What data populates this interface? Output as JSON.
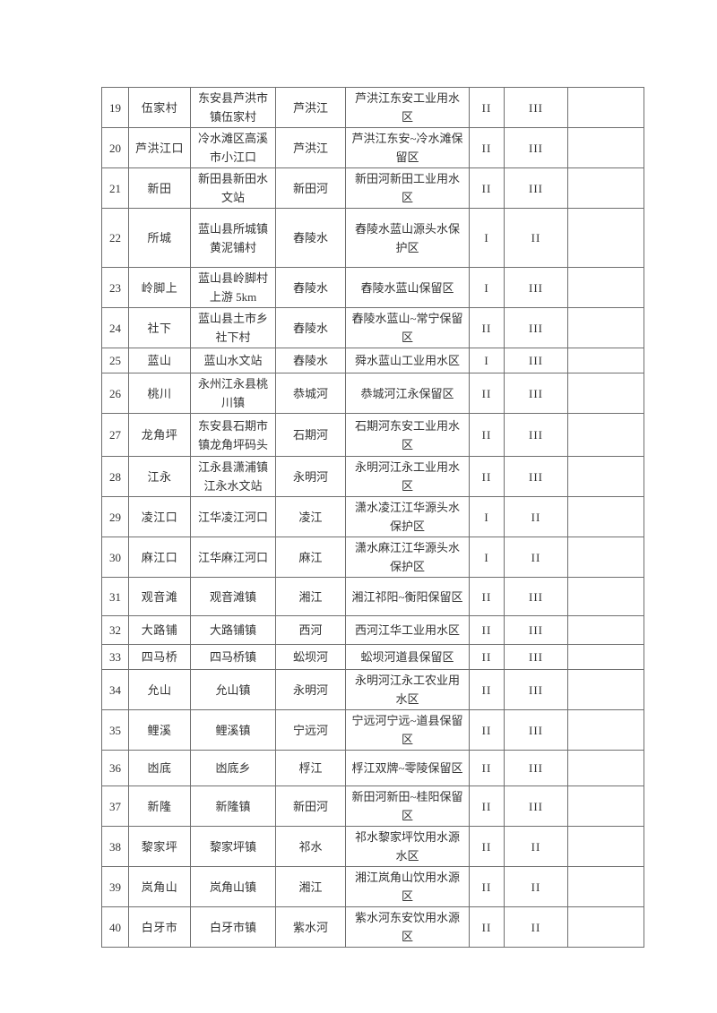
{
  "colors": {
    "page_background": "#ffffff",
    "table_border": "#6f6f6f",
    "text": "#333333"
  },
  "table": {
    "rows": [
      {
        "no": "19",
        "name": "伍家村",
        "location": "东安县芦洪市镇伍家村",
        "river": "芦洪江",
        "zone": "芦洪江东安工业用水区",
        "class1": "II",
        "class2": "III",
        "remark": ""
      },
      {
        "no": "20",
        "name": "芦洪江口",
        "location": "冷水滩区高溪市小江口",
        "river": "芦洪江",
        "zone": "芦洪江东安~冷水滩保留区",
        "class1": "II",
        "class2": "III",
        "remark": ""
      },
      {
        "no": "21",
        "name": "新田",
        "location": "新田县新田水文站",
        "river": "新田河",
        "zone": "新田河新田工业用水区",
        "class1": "II",
        "class2": "III",
        "remark": ""
      },
      {
        "no": "22",
        "name": "所城",
        "location": "蓝山县所城镇黄泥铺村",
        "river": "舂陵水",
        "zone": "舂陵水蓝山源头水保护区",
        "class1": "I",
        "class2": "II",
        "remark": ""
      },
      {
        "no": "23",
        "name": "岭脚上",
        "location": "蓝山县岭脚村上游 5km",
        "river": "舂陵水",
        "zone": "舂陵水蓝山保留区",
        "class1": "I",
        "class2": "III",
        "remark": ""
      },
      {
        "no": "24",
        "name": "社下",
        "location": "蓝山县土市乡社下村",
        "river": "舂陵水",
        "zone": "舂陵水蓝山~常宁保留区",
        "class1": "II",
        "class2": "III",
        "remark": ""
      },
      {
        "no": "25",
        "name": "蓝山",
        "location": "蓝山水文站",
        "river": "舂陵水",
        "zone": "舜水蓝山工业用水区",
        "class1": "I",
        "class2": "III",
        "remark": ""
      },
      {
        "no": "26",
        "name": "桃川",
        "location": "永州江永县桃川镇",
        "river": "恭城河",
        "zone": "恭城河江永保留区",
        "class1": "II",
        "class2": "III",
        "remark": ""
      },
      {
        "no": "27",
        "name": "龙角坪",
        "location": "东安县石期市镇龙角坪码头",
        "river": "石期河",
        "zone": "石期河东安工业用水区",
        "class1": "II",
        "class2": "III",
        "remark": ""
      },
      {
        "no": "28",
        "name": "江永",
        "location": "江永县潇浦镇江永水文站",
        "river": "永明河",
        "zone": "永明河江永工业用水区",
        "class1": "II",
        "class2": "III",
        "remark": ""
      },
      {
        "no": "29",
        "name": "凌江口",
        "location": "江华凌江河口",
        "river": "凌江",
        "zone": "潇水凌江江华源头水保护区",
        "class1": "I",
        "class2": "II",
        "remark": ""
      },
      {
        "no": "30",
        "name": "麻江口",
        "location": "江华麻江河口",
        "river": "麻江",
        "zone": "潇水麻江江华源头水保护区",
        "class1": "I",
        "class2": "II",
        "remark": ""
      },
      {
        "no": "31",
        "name": "观音滩",
        "location": "观音滩镇",
        "river": "湘江",
        "zone": "湘江祁阳~衡阳保留区",
        "class1": "II",
        "class2": "III",
        "remark": ""
      },
      {
        "no": "32",
        "name": "大路铺",
        "location": "大路铺镇",
        "river": "西河",
        "zone": "西河江华工业用水区",
        "class1": "II",
        "class2": "III",
        "remark": ""
      },
      {
        "no": "33",
        "name": "四马桥",
        "location": "四马桥镇",
        "river": "蚣坝河",
        "zone": "蚣坝河道县保留区",
        "class1": "II",
        "class2": "III",
        "remark": ""
      },
      {
        "no": "34",
        "name": "允山",
        "location": "允山镇",
        "river": "永明河",
        "zone": "永明河江永工农业用水区",
        "class1": "II",
        "class2": "III",
        "remark": ""
      },
      {
        "no": "35",
        "name": "鲤溪",
        "location": "鲤溪镇",
        "river": "宁远河",
        "zone": "宁远河宁远~道县保留区",
        "class1": "II",
        "class2": "III",
        "remark": ""
      },
      {
        "no": "36",
        "name": "凼底",
        "location": "凼底乡",
        "river": "桴江",
        "zone": "桴江双牌~零陵保留区",
        "class1": "II",
        "class2": "III",
        "remark": ""
      },
      {
        "no": "37",
        "name": "新隆",
        "location": "新隆镇",
        "river": "新田河",
        "zone": "新田河新田~桂阳保留区",
        "class1": "II",
        "class2": "III",
        "remark": ""
      },
      {
        "no": "38",
        "name": "黎家坪",
        "location": "黎家坪镇",
        "river": "祁水",
        "zone": "祁水黎家坪饮用水源水区",
        "class1": "II",
        "class2": "II",
        "remark": ""
      },
      {
        "no": "39",
        "name": "岚角山",
        "location": "岚角山镇",
        "river": "湘江",
        "zone": "湘江岚角山饮用水源区",
        "class1": "II",
        "class2": "II",
        "remark": ""
      },
      {
        "no": "40",
        "name": "白牙市",
        "location": "白牙市镇",
        "river": "紫水河",
        "zone": "紫水河东安饮用水源区",
        "class1": "II",
        "class2": "II",
        "remark": ""
      }
    ]
  }
}
